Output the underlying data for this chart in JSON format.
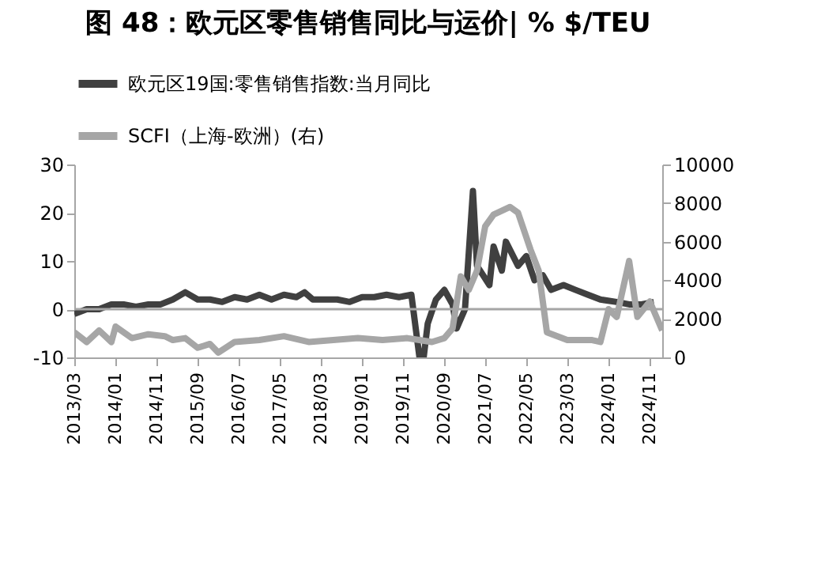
{
  "chart_data": {
    "type": "line",
    "title": "图 48：欧元区零售销售同比与运价| % $/TEU",
    "xlim": [
      "2013-03",
      "2025-02"
    ],
    "xticks": [
      {
        "value": "2013-03",
        "label": "2013/03"
      },
      {
        "value": "2014-01",
        "label": "2014/01"
      },
      {
        "value": "2014-11",
        "label": "2014/11"
      },
      {
        "value": "2015-09",
        "label": "2015/09"
      },
      {
        "value": "2016-07",
        "label": "2016/07"
      },
      {
        "value": "2017-05",
        "label": "2017/05"
      },
      {
        "value": "2018-03",
        "label": "2018/03"
      },
      {
        "value": "2019-01",
        "label": "2019/01"
      },
      {
        "value": "2019-11",
        "label": "2019/11"
      },
      {
        "value": "2020-09",
        "label": "2020/09"
      },
      {
        "value": "2021-07",
        "label": "2021/07"
      },
      {
        "value": "2022-05",
        "label": "2022/05"
      },
      {
        "value": "2023-03",
        "label": "2023/03"
      },
      {
        "value": "2024-01",
        "label": "2024/01"
      },
      {
        "value": "2024-11",
        "label": "2024/11"
      }
    ],
    "ylim": [
      -10,
      30
    ],
    "yticks": [
      -10,
      0,
      10,
      20,
      30
    ],
    "y2lim": [
      0,
      10000
    ],
    "y2ticks": [
      0,
      2000,
      4000,
      6000,
      8000,
      10000
    ],
    "grid": false,
    "legend": "top",
    "ref_lines": [
      {
        "axis": "y",
        "value": 0,
        "color": "#a6a6a6"
      }
    ],
    "series": [
      {
        "name": "欧元区19国:零售销售指数:当月同比",
        "color": "#404040",
        "x": [
          "2013-03",
          "2013-06",
          "2013-09",
          "2013-12",
          "2014-03",
          "2014-06",
          "2014-09",
          "2014-12",
          "2015-03",
          "2015-06",
          "2015-09",
          "2015-12",
          "2016-03",
          "2016-06",
          "2016-09",
          "2016-12",
          "2017-03",
          "2017-06",
          "2017-09",
          "2017-11",
          "2018-01",
          "2018-04",
          "2018-07",
          "2018-10",
          "2019-01",
          "2019-04",
          "2019-07",
          "2019-10",
          "2020-01",
          "2020-03",
          "2020-04",
          "2020-05",
          "2020-07",
          "2020-09",
          "2020-11",
          "2020-12",
          "2021-02",
          "2021-04",
          "2021-05",
          "2021-08",
          "2021-09",
          "2021-11",
          "2021-12",
          "2022-03",
          "2022-05",
          "2022-07",
          "2022-09",
          "2022-11",
          "2023-02",
          "2023-05",
          "2023-08",
          "2023-11",
          "2024-03",
          "2024-06",
          "2024-09",
          "2024-12"
        ],
        "values": [
          -1,
          0,
          0,
          1,
          1,
          0.5,
          1,
          1,
          2,
          3.5,
          2,
          2,
          1.5,
          2.5,
          2,
          3,
          2,
          3,
          2.5,
          3.5,
          2,
          2,
          2,
          1.5,
          2.5,
          2.5,
          3,
          2.5,
          3,
          -10,
          -10,
          -3,
          2,
          4,
          1,
          -4,
          0,
          24.5,
          9,
          5,
          13,
          8,
          14,
          9,
          11,
          6,
          7,
          4,
          5,
          4,
          3,
          2,
          1.5,
          1,
          1,
          1.5
        ]
      },
      {
        "name": "SCFI（上海-欧洲）(右)",
        "color": "#a6a6a6",
        "axis": "y2",
        "x": [
          "2013-03",
          "2013-06",
          "2013-09",
          "2013-12",
          "2014-01",
          "2014-05",
          "2014-09",
          "2015-01",
          "2015-03",
          "2015-06",
          "2015-09",
          "2015-12",
          "2016-02",
          "2016-06",
          "2016-12",
          "2017-06",
          "2017-12",
          "2018-06",
          "2018-12",
          "2019-06",
          "2019-12",
          "2020-03",
          "2020-06",
          "2020-09",
          "2020-11",
          "2021-01",
          "2021-03",
          "2021-05",
          "2021-07",
          "2021-09",
          "2022-01",
          "2022-03",
          "2022-06",
          "2022-08",
          "2022-10",
          "2023-03",
          "2023-09",
          "2023-11",
          "2024-01",
          "2024-03",
          "2024-06",
          "2024-08",
          "2024-11",
          "2025-02"
        ],
        "values": [
          1300,
          800,
          1400,
          800,
          1600,
          1000,
          1200,
          1100,
          900,
          1000,
          500,
          700,
          250,
          800,
          900,
          1100,
          800,
          900,
          1000,
          900,
          1000,
          900,
          800,
          1000,
          1500,
          4200,
          3500,
          4500,
          6800,
          7400,
          7800,
          7500,
          5600,
          4500,
          1300,
          900,
          900,
          800,
          2500,
          2100,
          5000,
          2100,
          2900,
          1400
        ]
      }
    ]
  }
}
